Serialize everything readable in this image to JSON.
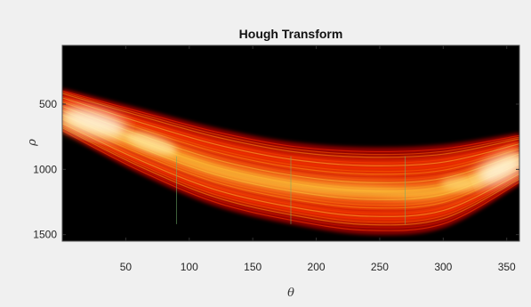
{
  "chart_data": {
    "type": "heatmap",
    "title": "Hough Transform",
    "xlabel": "θ",
    "ylabel": "ρ",
    "xlim": [
      0,
      360
    ],
    "ylim": [
      1550,
      50
    ],
    "y_reversed": true,
    "x_ticks": [
      50,
      100,
      150,
      200,
      250,
      300,
      350
    ],
    "y_ticks": [
      500,
      1000,
      1500
    ],
    "colormap": "hot",
    "colors": {
      "background": "#000000",
      "low": "#8a0000",
      "mid": "#ff3a00",
      "high": "#ffd040",
      "peak": "#fffbe6",
      "figure_bg": "#f0f0f0"
    },
    "band": {
      "upper_edge": [
        [
          0,
          380
        ],
        [
          60,
          530
        ],
        [
          120,
          680
        ],
        [
          180,
          790
        ],
        [
          240,
          830
        ],
        [
          300,
          810
        ],
        [
          360,
          720
        ]
      ],
      "lower_edge": [
        [
          0,
          720
        ],
        [
          60,
          1030
        ],
        [
          120,
          1280
        ],
        [
          180,
          1420
        ],
        [
          240,
          1500
        ],
        [
          300,
          1450
        ],
        [
          360,
          1120
        ]
      ],
      "bright_ridge": [
        [
          0,
          600
        ],
        [
          60,
          790
        ],
        [
          120,
          1000
        ],
        [
          180,
          1120
        ],
        [
          240,
          1170
        ],
        [
          300,
          1160
        ],
        [
          360,
          920
        ]
      ]
    },
    "vertical_lines": [
      90,
      180,
      270
    ]
  }
}
